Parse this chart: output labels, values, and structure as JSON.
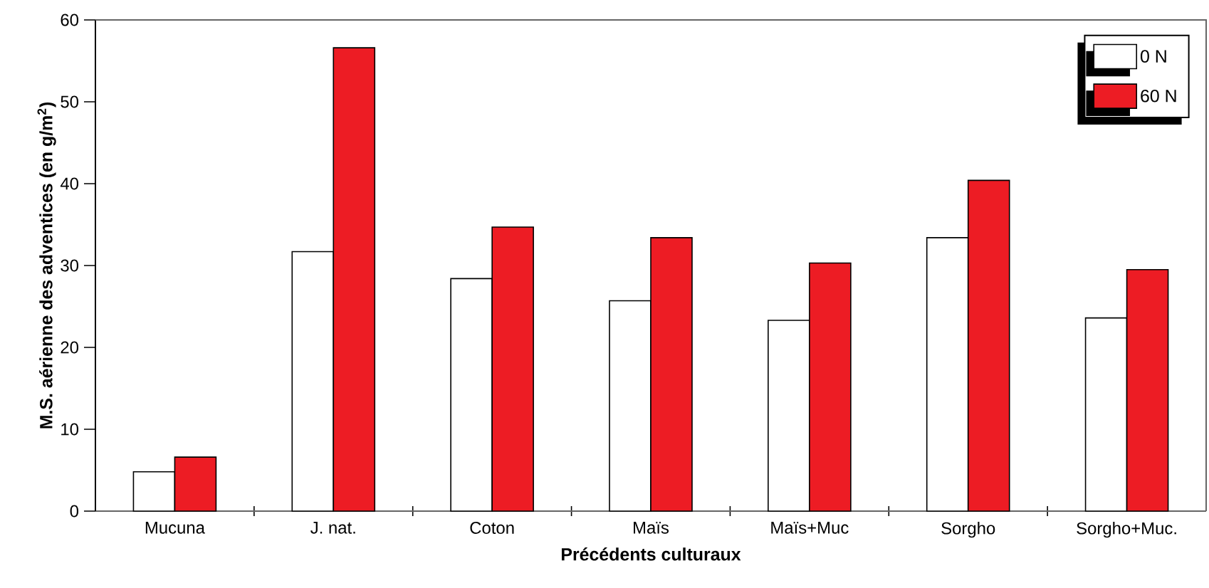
{
  "chart_data": {
    "type": "bar",
    "xlabel": "Précédents culturaux",
    "ylabel": "M.S. aérienne des adventices (en g/m$^{2}$)",
    "categories": [
      "Mucuna",
      "J. nat.",
      "Coton",
      "Maïs",
      "Maïs+Muc",
      "Sorgho",
      "Sorgho+Muc."
    ],
    "series": [
      {
        "name": "0 N",
        "color": "#ffffff",
        "values": [
          4.8,
          31.7,
          28.4,
          25.7,
          23.3,
          33.4,
          23.6
        ]
      },
      {
        "name": "60 N",
        "color": "#ed1c24",
        "values": [
          6.6,
          56.6,
          34.7,
          33.4,
          30.3,
          40.4,
          29.5
        ]
      }
    ],
    "ylim": [
      0,
      60
    ],
    "yticks": [
      0,
      10,
      20,
      30,
      40,
      50,
      60
    ],
    "grid": false,
    "legend": "top right"
  }
}
